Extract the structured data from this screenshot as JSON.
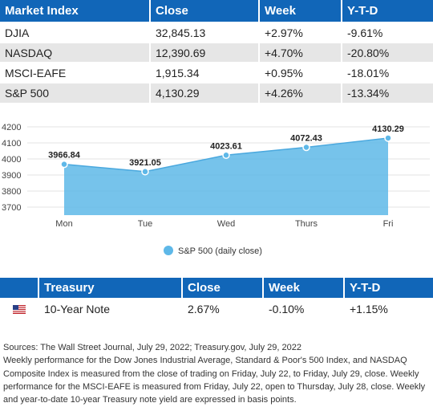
{
  "market_table": {
    "headers": [
      "Market Index",
      "Close",
      "Week",
      "Y-T-D"
    ],
    "rows": [
      {
        "index": "DJIA",
        "close": "32,845.13",
        "week": "+2.97%",
        "ytd": "-9.61%"
      },
      {
        "index": "NASDAQ",
        "close": "12,390.69",
        "week": "+4.70%",
        "ytd": "-20.80%"
      },
      {
        "index": "MSCI-EAFE",
        "close": "1,915.34",
        "week": "+0.95%",
        "ytd": "-18.01%"
      },
      {
        "index": "S&P 500",
        "close": "4,130.29",
        "week": "+4.26%",
        "ytd": "-13.34%"
      }
    ]
  },
  "chart_data": {
    "type": "area",
    "categories": [
      "Mon",
      "Tue",
      "Wed",
      "Thurs",
      "Fri"
    ],
    "series": [
      {
        "name": "S&P 500 (daily close)",
        "values": [
          3966.84,
          3921.05,
          4023.61,
          4072.43,
          4130.29
        ]
      }
    ],
    "data_labels": [
      "3966.84",
      "3921.05",
      "4023.61",
      "4072.43",
      "4130.29"
    ],
    "yticks": [
      3700,
      3800,
      3900,
      4000,
      4100,
      4200
    ],
    "ylim": [
      3650,
      4200
    ],
    "grid": true,
    "legend_position": "bottom-center",
    "color": "#5eb8e8"
  },
  "treasury_table": {
    "headers": [
      "",
      "Treasury",
      "Close",
      "Week",
      "Y-T-D"
    ],
    "rows": [
      {
        "flag_icon": "us-flag-icon",
        "name": "10-Year Note",
        "close": "2.67%",
        "week": "-0.10%",
        "ytd": "+1.15%"
      }
    ]
  },
  "notes": {
    "sources": "Sources: The Wall Street Journal, July 29, 2022; Treasury.gov, July 29, 2022",
    "body": "Weekly performance for the Dow Jones Industrial Average, Standard & Poor's 500 Index, and NASDAQ Composite Index is measured from the close of trading on Friday, July 22, to Friday, July 29, close. Weekly performance for the MSCI-EAFE is measured from Friday, July 22, open to Thursday, July 28, close. Weekly and year-to-date 10-year Treasury note yield are expressed in basis points."
  }
}
